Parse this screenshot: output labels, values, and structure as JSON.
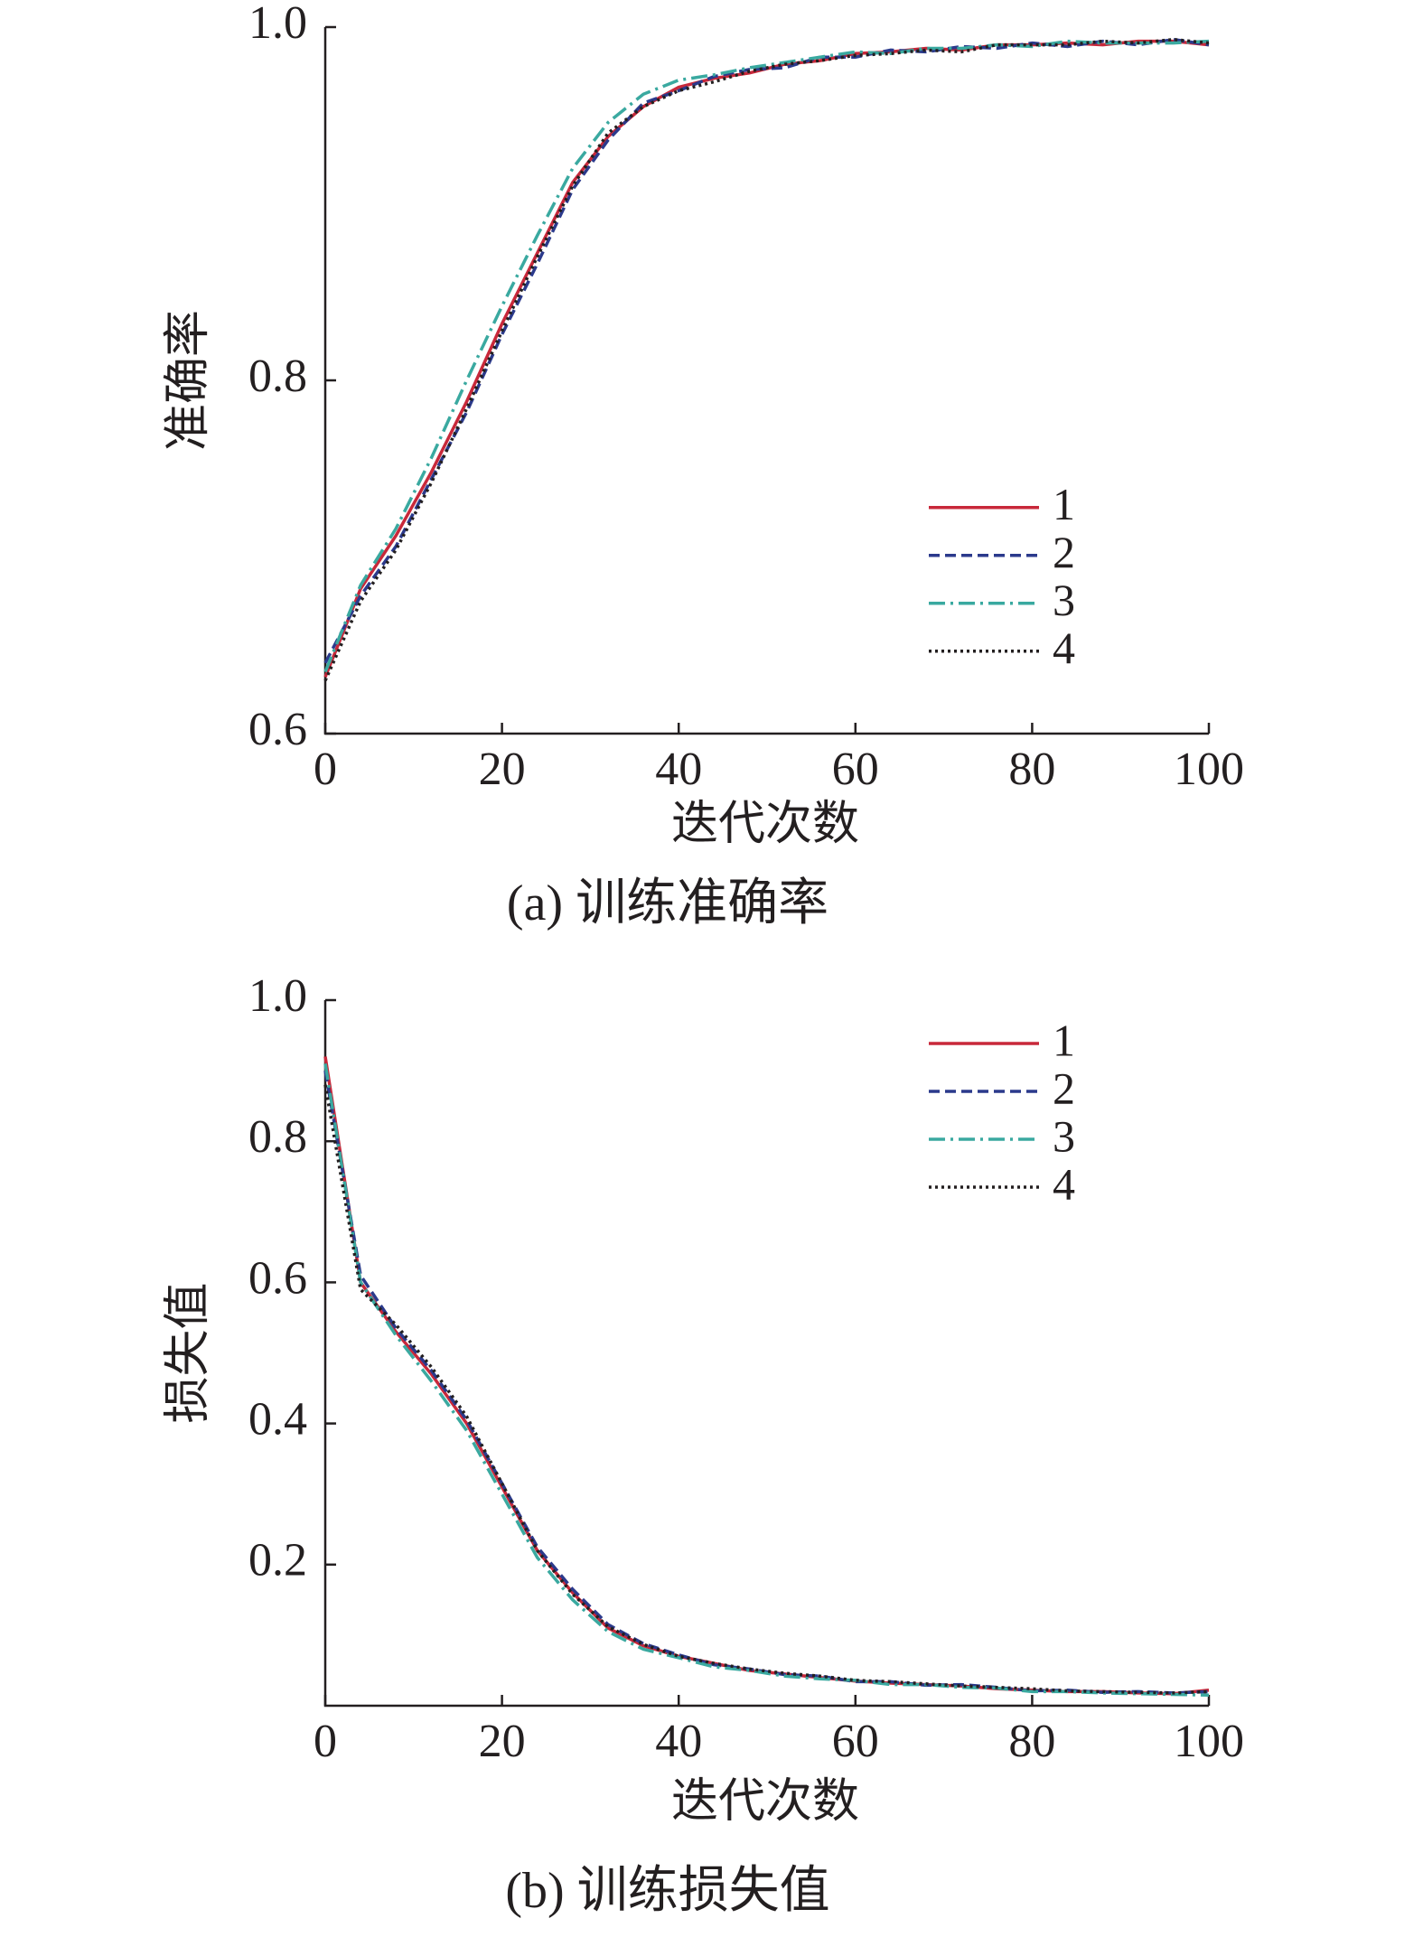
{
  "chart_data": [
    {
      "type": "line",
      "caption": "(a) 训练准确率",
      "x_label": "迭代次数",
      "y_label": "准确率",
      "x": [
        0,
        4,
        8,
        12,
        16,
        20,
        24,
        28,
        32,
        36,
        40,
        44,
        48,
        52,
        56,
        60,
        64,
        68,
        72,
        76,
        80,
        84,
        88,
        92,
        96,
        100
      ],
      "xlim": [
        0,
        100
      ],
      "xticks": [
        0,
        20,
        40,
        60,
        80,
        100
      ],
      "ylim": [
        0.6,
        1
      ],
      "yticks": [
        0.6,
        0.8,
        {
          "value": 1,
          "label": "1.0"
        }
      ],
      "legend": "center-right",
      "grid": false,
      "series": [
        {
          "name": "1",
          "color": "#c8283a",
          "dash": "solid",
          "values": [
            0.632,
            0.682,
            0.712,
            0.748,
            0.788,
            0.832,
            0.872,
            0.912,
            0.938,
            0.955,
            0.966,
            0.971,
            0.974,
            0.979,
            0.981,
            0.985,
            0.986,
            0.988,
            0.987,
            0.99,
            0.99,
            0.991,
            0.99,
            0.992,
            0.992,
            0.99
          ]
        },
        {
          "name": "2",
          "color": "#2b3a8c",
          "dash": "dashed",
          "values": [
            0.64,
            0.678,
            0.706,
            0.744,
            0.782,
            0.826,
            0.866,
            0.908,
            0.936,
            0.957,
            0.964,
            0.972,
            0.976,
            0.977,
            0.983,
            0.983,
            0.987,
            0.986,
            0.989,
            0.988,
            0.991,
            0.989,
            0.992,
            0.99,
            0.993,
            0.99
          ]
        },
        {
          "name": "3",
          "color": "#3aa9a0",
          "dash": "dashdot",
          "values": [
            0.635,
            0.684,
            0.716,
            0.756,
            0.8,
            0.842,
            0.882,
            0.92,
            0.946,
            0.962,
            0.97,
            0.973,
            0.977,
            0.98,
            0.983,
            0.986,
            0.985,
            0.988,
            0.988,
            0.99,
            0.989,
            0.992,
            0.991,
            0.991,
            0.991,
            0.992
          ]
        },
        {
          "name": "4",
          "color": "#231f20",
          "dash": "dotted",
          "values": [
            0.63,
            0.675,
            0.704,
            0.742,
            0.784,
            0.828,
            0.87,
            0.91,
            0.94,
            0.955,
            0.964,
            0.969,
            0.975,
            0.979,
            0.981,
            0.984,
            0.985,
            0.987,
            0.986,
            0.99,
            0.99,
            0.99,
            0.992,
            0.991,
            0.993,
            0.991
          ]
        }
      ]
    },
    {
      "type": "line",
      "caption": "(b) 训练损失值",
      "x_label": "迭代次数",
      "y_label": "损失值",
      "x": [
        0,
        4,
        8,
        12,
        16,
        20,
        24,
        28,
        32,
        36,
        40,
        44,
        48,
        52,
        56,
        60,
        64,
        68,
        72,
        76,
        80,
        84,
        88,
        92,
        96,
        100
      ],
      "xlim": [
        0,
        100
      ],
      "xticks": [
        0,
        20,
        40,
        60,
        80,
        100
      ],
      "ylim": [
        0,
        1
      ],
      "yticks": [
        0.2,
        0.4,
        0.6,
        0.8,
        {
          "value": 1,
          "label": "1.0"
        }
      ],
      "legend": "upper-right",
      "grid": false,
      "series": [
        {
          "name": "1",
          "color": "#c8283a",
          "dash": "solid",
          "values": [
            0.92,
            0.6,
            0.53,
            0.47,
            0.4,
            0.31,
            0.22,
            0.16,
            0.11,
            0.085,
            0.07,
            0.06,
            0.05,
            0.045,
            0.04,
            0.035,
            0.032,
            0.03,
            0.028,
            0.024,
            0.022,
            0.02,
            0.02,
            0.018,
            0.017,
            0.022
          ]
        },
        {
          "name": "2",
          "color": "#2b3a8c",
          "dash": "dashed",
          "values": [
            0.9,
            0.61,
            0.535,
            0.475,
            0.405,
            0.315,
            0.225,
            0.165,
            0.115,
            0.088,
            0.072,
            0.058,
            0.052,
            0.044,
            0.042,
            0.034,
            0.034,
            0.029,
            0.03,
            0.026,
            0.021,
            0.022,
            0.019,
            0.02,
            0.018,
            0.02
          ]
        },
        {
          "name": "3",
          "color": "#3aa9a0",
          "dash": "dashdot",
          "values": [
            0.91,
            0.6,
            0.525,
            0.46,
            0.39,
            0.3,
            0.21,
            0.15,
            0.105,
            0.08,
            0.068,
            0.055,
            0.05,
            0.042,
            0.038,
            0.036,
            0.03,
            0.03,
            0.026,
            0.025,
            0.02,
            0.02,
            0.018,
            0.017,
            0.016,
            0.015
          ]
        },
        {
          "name": "4",
          "color": "#231f20",
          "dash": "dotted",
          "values": [
            0.88,
            0.59,
            0.54,
            0.48,
            0.41,
            0.315,
            0.22,
            0.158,
            0.112,
            0.087,
            0.07,
            0.06,
            0.052,
            0.046,
            0.042,
            0.036,
            0.034,
            0.031,
            0.028,
            0.026,
            0.024,
            0.021,
            0.02,
            0.019,
            0.018,
            0.02
          ]
        }
      ]
    }
  ]
}
